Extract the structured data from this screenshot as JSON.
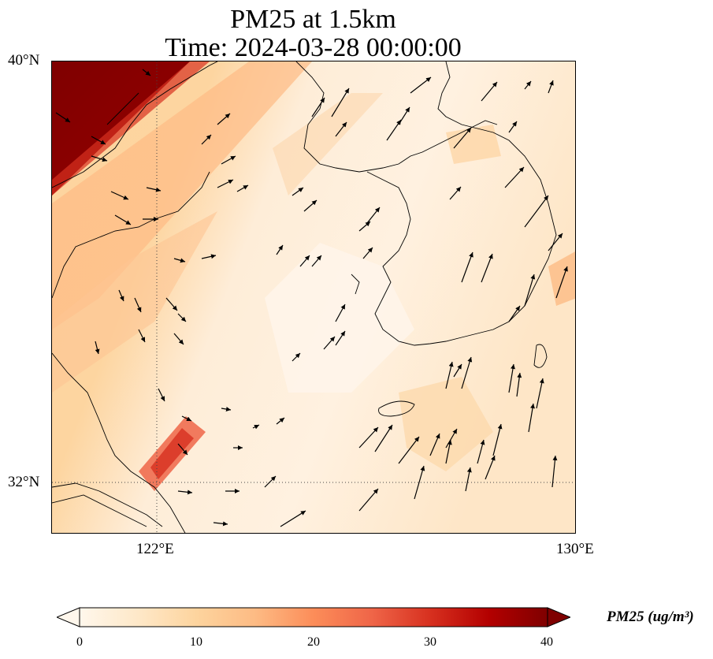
{
  "title_line1": "PM25 at 1.5km",
  "title_line2": "Time: 2024-03-28 00:00:00",
  "lat_ticks": [
    "40°N",
    "32°N"
  ],
  "lon_ticks": [
    "122°E",
    "130°E"
  ],
  "extent": {
    "lon_min": 120,
    "lon_max": 130,
    "lat_min": 31,
    "lat_max": 40
  },
  "colorbar": {
    "label": "PM25 (ug/m³)",
    "ticks": [
      "0",
      "10",
      "20",
      "30",
      "40"
    ],
    "min": 0,
    "max": 40,
    "extend": "both",
    "colormap": "OrRd",
    "colors": [
      "#fff7ec",
      "#fee8c8",
      "#fdd49e",
      "#fdbb84",
      "#fc8d59",
      "#ef6548",
      "#d7301f",
      "#b30000",
      "#7f0000"
    ]
  },
  "gridlines": {
    "style": "dotted",
    "lons": [
      122,
      130
    ],
    "lats": [
      32,
      40
    ]
  }
}
